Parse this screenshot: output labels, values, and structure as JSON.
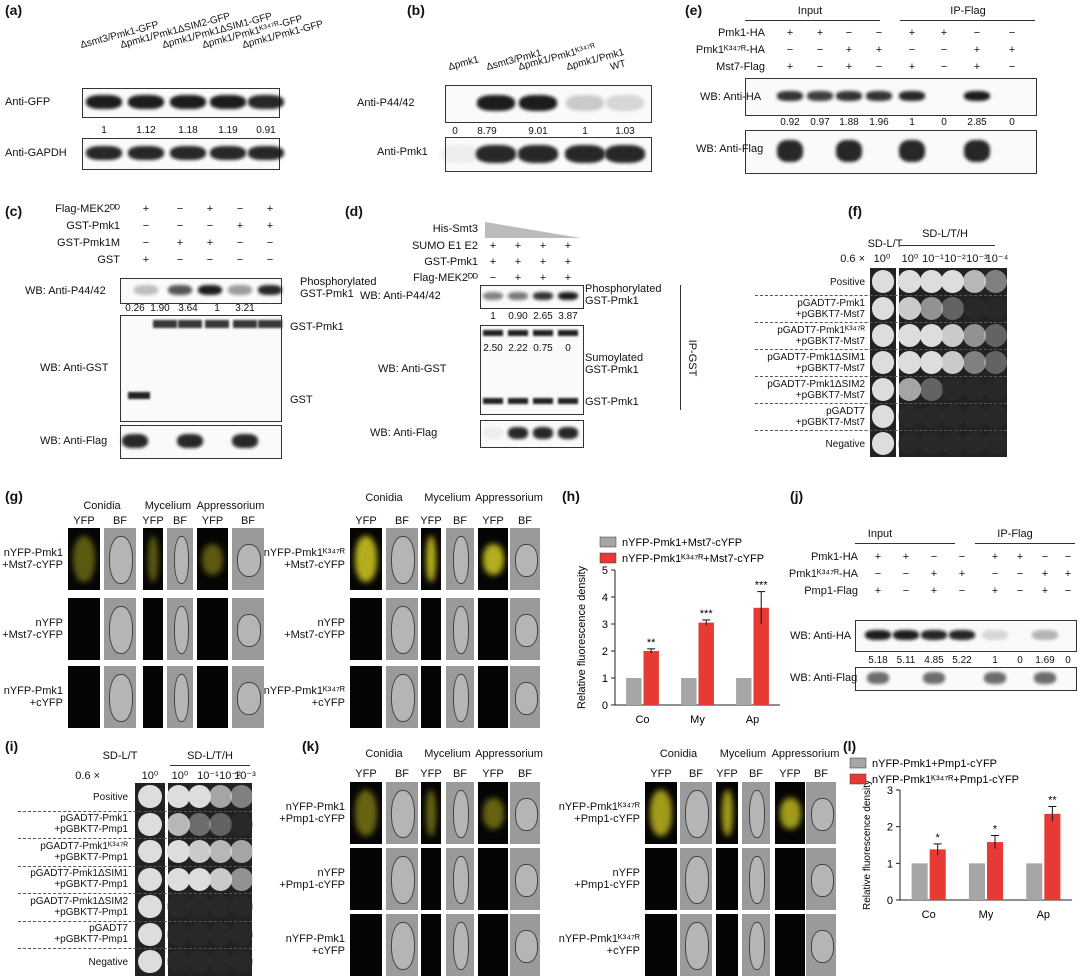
{
  "panels": {
    "a": {
      "label": "(a)",
      "lanes": [
        "Δsmt3/Pmk1-GFP",
        "Δpmk1/Pmk1ΔSIM2-GFP",
        "Δpmk1/Pmk1ΔSIM1-GFP",
        "Δpmk1/Pmk1ᴷ³⁴⁷ᴿ-GFP",
        "Δpmk1/Pmk1-GFP"
      ],
      "rows": [
        "Anti-GFP",
        "Anti-GAPDH"
      ],
      "quant": [
        "1",
        "1.12",
        "1.18",
        "1.19",
        "0.91"
      ]
    },
    "b": {
      "label": "(b)",
      "lanes": [
        "Δpmk1",
        "Δsmt3/Pmk1",
        "Δpmk1/Pmk1ᴷ³⁴⁷ᴿ",
        "Δpmk1/Pmk1",
        "WT"
      ],
      "rows": [
        "Anti-P44/42",
        "Anti-Pmk1"
      ],
      "quant": [
        "0",
        "8.79",
        "9.01",
        "1",
        "1.03"
      ]
    },
    "c": {
      "label": "(c)",
      "conditions": [
        {
          "name": "Flag-MEK2ᴰᴰ",
          "signs": [
            "+",
            "−",
            "+",
            "−",
            "+"
          ]
        },
        {
          "name": "GST-Pmk1",
          "signs": [
            "−",
            "−",
            "−",
            "+",
            "+"
          ]
        },
        {
          "name": "GST-Pmk1M",
          "signs": [
            "−",
            "+",
            "+",
            "−",
            "−"
          ]
        },
        {
          "name": "GST",
          "signs": [
            "+",
            "−",
            "−",
            "−",
            "−"
          ]
        }
      ],
      "rows": [
        "WB: Anti-P44/42",
        "WB: Anti-GST",
        "WB: Anti-Flag"
      ],
      "quant": [
        "0.26",
        "1.90",
        "3.64",
        "1",
        "3.21"
      ],
      "annotations": [
        "Phosphorylated\nGST-Pmk1",
        "GST-Pmk1",
        "GST"
      ]
    },
    "d": {
      "label": "(d)",
      "gradient": "His-Smt3",
      "conditions": [
        {
          "name": "SUMO E1 E2",
          "signs": [
            "+",
            "+",
            "+",
            "+"
          ]
        },
        {
          "name": "GST-Pmk1",
          "signs": [
            "+",
            "+",
            "+",
            "+"
          ]
        },
        {
          "name": "Flag-MEK2ᴰᴰ",
          "signs": [
            "−",
            "+",
            "+",
            "+"
          ]
        }
      ],
      "rows": [
        "WB: Anti-P44/42",
        "WB: Anti-GST",
        "WB: Anti-Flag"
      ],
      "quant": [
        "1",
        "0.90",
        "2.65",
        "3.87"
      ],
      "quant2": [
        "2.50",
        "2.22",
        "0.75",
        "0"
      ],
      "annotations": [
        "Phosphorylated\nGST-Pmk1",
        "Sumoylated\nGST-Pmk1",
        "GST-Pmk1"
      ],
      "side": "IP-GST"
    },
    "e": {
      "label": "(e)",
      "groups": [
        "Input",
        "IP-Flag"
      ],
      "conditions": [
        {
          "name": "Pmk1-HA",
          "signs": [
            "+",
            "+",
            "−",
            "−",
            "+",
            "+",
            "−",
            "−"
          ]
        },
        {
          "name": "Pmk1ᴷ³⁴⁷ᴿ-HA",
          "signs": [
            "−",
            "−",
            "+",
            "+",
            "−",
            "−",
            "+",
            "+"
          ]
        },
        {
          "name": "Mst7-Flag",
          "signs": [
            "+",
            "−",
            "+",
            "−",
            "+",
            "−",
            "+",
            "−"
          ]
        }
      ],
      "rows": [
        "WB: Anti-HA",
        "WB: Anti-Flag"
      ],
      "quant": [
        "0.92",
        "0.97",
        "1.88",
        "1.96",
        "1",
        "0",
        "2.85",
        "0"
      ]
    },
    "f": {
      "label": "(f)",
      "media": [
        "SD-L/T",
        "SD-L/T/H"
      ],
      "od": "0.6 ×",
      "dilutions": [
        "10⁰",
        "10⁰",
        "10⁻¹",
        "10⁻²",
        "10⁻³",
        "10⁻⁴"
      ],
      "rows": [
        "Positive",
        "pGADT7-Pmk1\n+pGBKT7-Mst7",
        "pGADT7-Pmk1ᴷ³⁴⁷ᴿ\n+pGBKT7-Mst7",
        "pGADT7-Pmk1ΔSIM1\n+pGBKT7-Mst7",
        "pGADT7-Pmk1ΔSIM2\n+pGBKT7-Mst7",
        "pGADT7\n+pGBKT7-Mst7",
        "Negative"
      ]
    },
    "g": {
      "label": "(g)",
      "halves": [
        {
          "headers": [
            "Conidia",
            "Mycelium",
            "Appressorium"
          ],
          "sub": [
            "YFP",
            "BF",
            "YFP",
            "BF",
            "YFP",
            "BF"
          ],
          "rows": [
            "nYFP-Pmk1\n+Mst7-cYFP",
            "nYFP\n+Mst7-cYFP",
            "nYFP-Pmk1\n+cYFP"
          ]
        },
        {
          "headers": [
            "Conidia",
            "Mycelium",
            "Appressorium"
          ],
          "sub": [
            "YFP",
            "BF",
            "YFP",
            "BF",
            "YFP",
            "BF"
          ],
          "rows": [
            "nYFP-Pmk1ᴷ³⁴⁷ᴿ\n+Mst7-cYFP",
            "nYFP\n+Mst7-cYFP",
            "nYFP-Pmk1ᴷ³⁴⁷ᴿ\n+cYFP"
          ]
        }
      ]
    },
    "h": {
      "label": "(h)"
    },
    "i": {
      "label": "(i)",
      "media": [
        "SD-L/T",
        "SD-L/T/H"
      ],
      "od": "0.6 ×",
      "dilutions": [
        "10⁰",
        "10⁰",
        "10⁻¹",
        "10⁻²",
        "10⁻³"
      ],
      "rows": [
        "Positive",
        "pGADT7-Pmk1\n+pGBKT7-Pmp1",
        "pGADT7-Pmk1ᴷ³⁴⁷ᴿ\n+pGBKT7-Pmp1",
        "pGADT7-Pmk1ΔSIM1\n+pGBKT7-Pmp1",
        "pGADT7-Pmk1ΔSIM2\n+pGBKT7-Pmp1",
        "pGADT7\n+pGBKT7-Pmp1",
        "Negative"
      ]
    },
    "j": {
      "label": "(j)",
      "groups": [
        "Input",
        "IP-Flag"
      ],
      "conditions": [
        {
          "name": "Pmk1-HA",
          "signs": [
            "+",
            "+",
            "−",
            "−",
            "+",
            "+",
            "−",
            "−"
          ]
        },
        {
          "name": "Pmk1ᴷ³⁴⁷ᴿ-HA",
          "signs": [
            "−",
            "−",
            "+",
            "+",
            "−",
            "−",
            "+",
            "+"
          ]
        },
        {
          "name": "Pmp1-Flag",
          "signs": [
            "+",
            "−",
            "+",
            "−",
            "+",
            "−",
            "+",
            "−"
          ]
        }
      ],
      "rows": [
        "WB: Anti-HA",
        "WB: Anti-Flag"
      ],
      "quant": [
        "5.18",
        "5.11",
        "4.85",
        "5.22",
        "1",
        "0",
        "1.69",
        "0"
      ]
    },
    "k": {
      "label": "(k)",
      "halves": [
        {
          "headers": [
            "Conidia",
            "Mycelium",
            "Appressorium"
          ],
          "sub": [
            "YFP",
            "BF",
            "YFP",
            "BF",
            "YFP",
            "BF"
          ],
          "rows": [
            "nYFP-Pmk1\n+Pmp1-cYFP",
            "nYFP\n+Pmp1-cYFP",
            "nYFP-Pmk1\n+cYFP"
          ]
        },
        {
          "headers": [
            "Conidia",
            "Mycelium",
            "Appressorium"
          ],
          "sub": [
            "YFP",
            "BF",
            "YFP",
            "BF",
            "YFP",
            "BF"
          ],
          "rows": [
            "nYFP-Pmk1ᴷ³⁴⁷ᴿ\n+Pmp1-cYFP",
            "nYFP\n+Pmp1-cYFP",
            "nYFP-Pmk1ᴷ³⁴⁷ᴿ\n+cYFP"
          ]
        }
      ]
    },
    "l": {
      "label": "(l)"
    }
  },
  "chart_data": [
    {
      "type": "bar",
      "ylabel": "Relative fluorescence density",
      "categories": [
        "Co",
        "My",
        "Ap"
      ],
      "series": [
        {
          "name": "nYFP-Pmk1+Mst7-cYFP",
          "color": "#a6a6a6",
          "values": [
            1,
            1,
            1
          ]
        },
        {
          "name": "nYFP-Pmk1ᴷ³⁴⁷ᴿ+Mst7-cYFP",
          "color": "#e83a35",
          "values": [
            2.0,
            3.05,
            3.6
          ],
          "errors": [
            0.08,
            0.1,
            0.6
          ],
          "significance": [
            "**",
            "***",
            "***"
          ]
        }
      ],
      "ylim": [
        0,
        5
      ],
      "yticks": [
        0,
        1,
        2,
        3,
        4,
        5
      ]
    },
    {
      "type": "bar",
      "ylabel": "Relative fluorescence density",
      "categories": [
        "Co",
        "My",
        "Ap"
      ],
      "series": [
        {
          "name": "nYFP-Pmk1+Pmp1-cYFP",
          "color": "#a6a6a6",
          "values": [
            1,
            1,
            1
          ]
        },
        {
          "name": "nYFP-Pmk1ᴷ³⁴⁷ᴿ+Pmp1-cYFP",
          "color": "#e83a35",
          "values": [
            1.38,
            1.58,
            2.35
          ],
          "errors": [
            0.15,
            0.18,
            0.2
          ],
          "significance": [
            "*",
            "*",
            "**"
          ]
        }
      ],
      "ylim": [
        0,
        3
      ],
      "yticks": [
        0,
        1,
        2,
        3
      ]
    }
  ]
}
